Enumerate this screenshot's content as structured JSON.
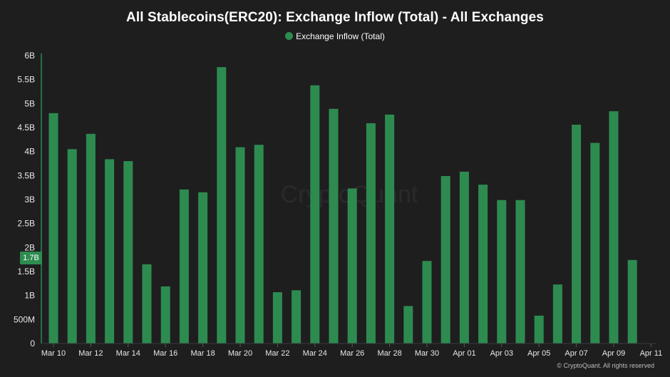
{
  "chart_data": {
    "type": "bar",
    "title": "All Stablecoins(ERC20): Exchange Inflow (Total) - All Exchanges",
    "legend": "Exchange Inflow (Total)",
    "color": "#2e8b50",
    "axis_color": "#2e8b50",
    "y_ticks": [
      {
        "value": 0,
        "label": "0"
      },
      {
        "value": 500000000,
        "label": "500M"
      },
      {
        "value": 1000000000,
        "label": "1B"
      },
      {
        "value": 1500000000,
        "label": "1.5B"
      },
      {
        "value": 2000000000,
        "label": "2B"
      },
      {
        "value": 2500000000,
        "label": "2.5B"
      },
      {
        "value": 3000000000,
        "label": "3B"
      },
      {
        "value": 3500000000,
        "label": "3.5B"
      },
      {
        "value": 4000000000,
        "label": "4B"
      },
      {
        "value": 4500000000,
        "label": "4.5B"
      },
      {
        "value": 5000000000,
        "label": "5B"
      },
      {
        "value": 5500000000,
        "label": "5.5B"
      },
      {
        "value": 6000000000,
        "label": "6B"
      }
    ],
    "ylim": [
      0,
      6000000000
    ],
    "x_tick_labels": [
      "Mar 10",
      "Mar 12",
      "Mar 14",
      "Mar 16",
      "Mar 18",
      "Mar 20",
      "Mar 22",
      "Mar 24",
      "Mar 26",
      "Mar 28",
      "Mar 30",
      "Apr 01",
      "Apr 03",
      "Apr 05",
      "Apr 07",
      "Apr 09",
      "Apr 11"
    ],
    "categories": [
      "Mar 10",
      "Mar 11",
      "Mar 12",
      "Mar 13",
      "Mar 14",
      "Mar 15",
      "Mar 16",
      "Mar 17",
      "Mar 18",
      "Mar 19",
      "Mar 20",
      "Mar 21",
      "Mar 22",
      "Mar 23",
      "Mar 24",
      "Mar 25",
      "Mar 26",
      "Mar 27",
      "Mar 28",
      "Mar 29",
      "Mar 30",
      "Mar 31",
      "Apr 01",
      "Apr 02",
      "Apr 03",
      "Apr 04",
      "Apr 05",
      "Apr 06",
      "Apr 07",
      "Apr 08",
      "Apr 09",
      "Apr 10",
      "Apr 11"
    ],
    "values": [
      4800000000,
      4050000000,
      4370000000,
      3840000000,
      3800000000,
      1650000000,
      1190000000,
      3210000000,
      3150000000,
      5760000000,
      4090000000,
      4140000000,
      1070000000,
      1110000000,
      5380000000,
      4890000000,
      3230000000,
      4590000000,
      4770000000,
      780000000,
      1720000000,
      3490000000,
      3580000000,
      3310000000,
      2990000000,
      2990000000,
      580000000,
      1230000000,
      4560000000,
      4180000000,
      4840000000,
      1740000000,
      null
    ],
    "current_value_label": "1.7B",
    "watermark": "CryptoQuant",
    "credit": "© CryptoQuant. All rights reserved"
  }
}
